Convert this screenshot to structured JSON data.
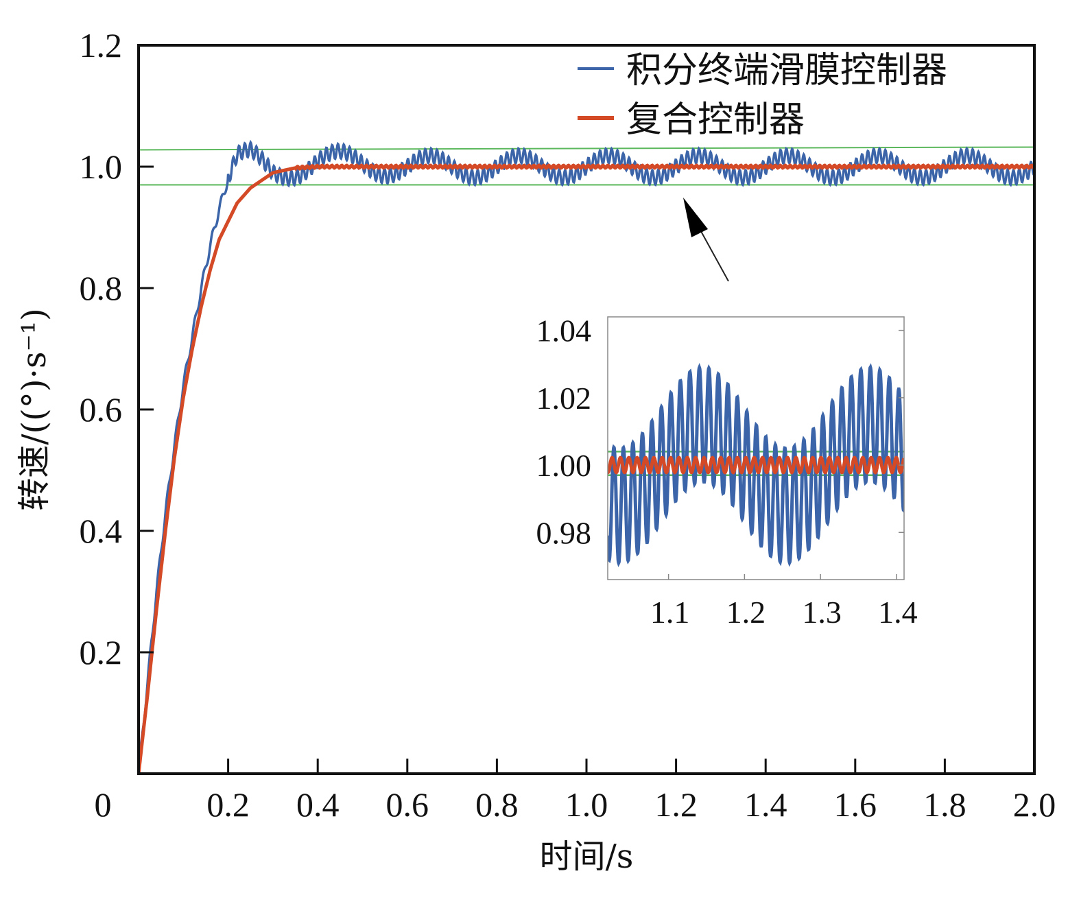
{
  "chart_data": {
    "type": "line",
    "xlabel": "时间/s",
    "ylabel": "转速/((°)·s⁻¹)",
    "xlim": [
      0,
      2.0
    ],
    "ylim": [
      0,
      1.2
    ],
    "xticks": [
      "0",
      "0.2",
      "0.4",
      "0.6",
      "0.8",
      "1.0",
      "1.2",
      "1.4",
      "1.6",
      "1.8",
      "2.0"
    ],
    "yticks": [
      "0.2",
      "0.4",
      "0.6",
      "0.8",
      "1.0",
      "1.2"
    ],
    "band": [
      0.97,
      1.03
    ],
    "legend_position": "top-right",
    "series": [
      {
        "name": "积分终端滑膜控制器",
        "color": "#3b65a8",
        "x": [
          0,
          0.02,
          0.04,
          0.06,
          0.08,
          0.1,
          0.12,
          0.14,
          0.16,
          0.18,
          0.2,
          0.22,
          0.25,
          0.3,
          0.4,
          0.6,
          0.8,
          1.0,
          1.2,
          1.4,
          1.6,
          1.8,
          2.0
        ],
        "y": [
          0,
          0.15,
          0.3,
          0.43,
          0.54,
          0.64,
          0.72,
          0.8,
          0.87,
          0.93,
          0.98,
          1.01,
          1.01,
          0.99,
          1.01,
          1.0,
          1.0,
          1.0,
          1.0,
          1.0,
          1.0,
          1.0,
          1.0
        ],
        "steady_oscillation": "±0.03"
      },
      {
        "name": "复合控制器",
        "color": "#d44a27",
        "x": [
          0,
          0.02,
          0.04,
          0.06,
          0.08,
          0.1,
          0.12,
          0.14,
          0.16,
          0.18,
          0.2,
          0.22,
          0.25,
          0.3,
          0.35,
          0.4,
          0.6,
          0.8,
          1.0,
          1.2,
          1.4,
          1.6,
          1.8,
          2.0
        ],
        "y": [
          0,
          0.13,
          0.27,
          0.4,
          0.52,
          0.62,
          0.7,
          0.77,
          0.83,
          0.88,
          0.91,
          0.94,
          0.965,
          0.99,
          0.998,
          1.0,
          1.0,
          1.0,
          1.0,
          1.0,
          1.0,
          1.0,
          1.0,
          1.0
        ]
      }
    ],
    "inset": {
      "xlim": [
        1.02,
        1.41
      ],
      "ylim": [
        0.966,
        1.044
      ],
      "xticks": [
        "1.1",
        "1.2",
        "1.3",
        "1.4"
      ],
      "yticks": [
        "1.04",
        "1.02",
        "1.00",
        "0.98"
      ],
      "band": [
        1.004,
        0.997
      ],
      "series_ranges": {
        "积分终端滑膜控制器": [
          0.97,
          1.032
        ],
        "复合控制器": [
          0.997,
          1.003
        ]
      }
    }
  }
}
